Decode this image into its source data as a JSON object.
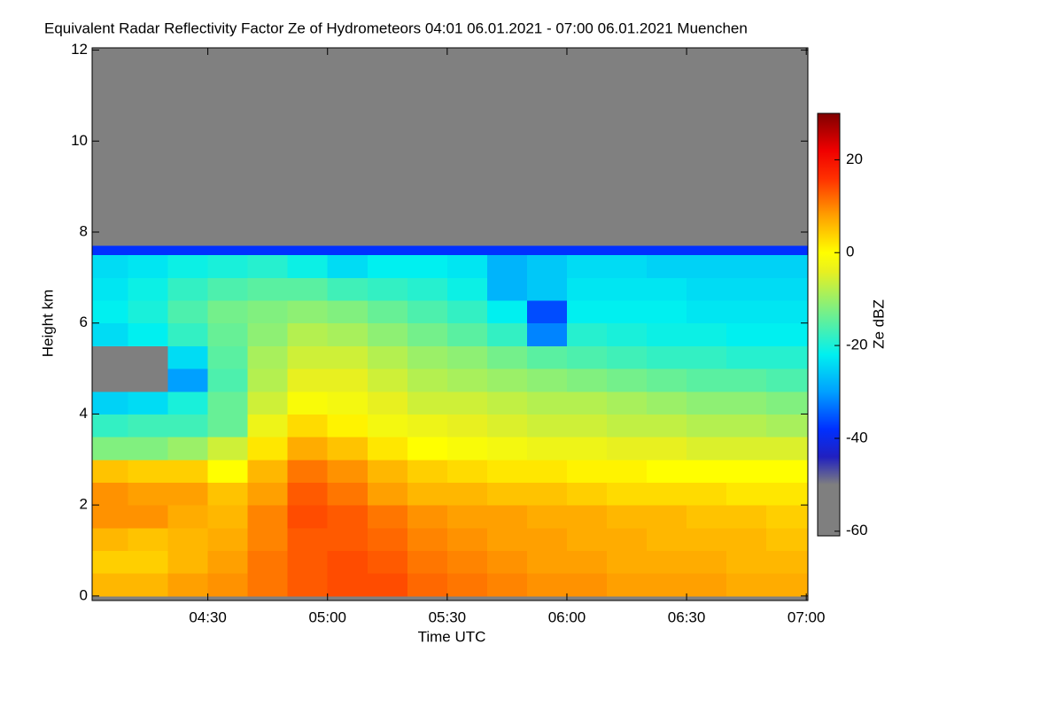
{
  "chart_data": {
    "type": "heatmap",
    "title": "Equivalent Radar Reflectivity Factor Ze of Hydrometeors   04:01 06.01.2021 - 07:00 06.01.2021 Muenchen",
    "x_label": "Time UTC",
    "y_label": "Height km",
    "colorbar_label": "Ze dBZ",
    "xlim": [
      241,
      420.4
    ],
    "xticks": [
      {
        "value": 270,
        "label": "04:30"
      },
      {
        "value": 300,
        "label": "05:00"
      },
      {
        "value": 330,
        "label": "05:30"
      },
      {
        "value": 360,
        "label": "06:00"
      },
      {
        "value": 390,
        "label": "06:30"
      },
      {
        "value": 420,
        "label": "07:00"
      }
    ],
    "ylim": [
      -0.1,
      12.05
    ],
    "yticks": [
      0,
      2,
      4,
      6,
      8,
      10,
      12
    ],
    "zlim": [
      -61,
      30
    ],
    "zticks": [
      -60,
      -40,
      -20,
      0,
      20
    ],
    "background_color": "#808080",
    "xbins": [
      241,
      250,
      260,
      270,
      280,
      290,
      300,
      310,
      320,
      330,
      340,
      350,
      360,
      370,
      380,
      390,
      400,
      410,
      420.4
    ],
    "ybins": [
      0,
      0.5,
      1,
      1.5,
      2,
      2.5,
      3,
      3.5,
      4,
      4.5,
      5,
      5.5,
      6,
      6.5,
      7,
      7.5,
      7.7
    ],
    "z": [
      [
        6,
        6,
        8,
        9,
        11,
        13,
        14,
        14,
        12,
        11,
        10,
        9,
        9,
        8,
        8,
        8,
        7,
        7
      ],
      [
        4,
        4,
        6,
        8,
        11,
        13,
        14,
        13,
        11,
        10,
        9,
        8,
        8,
        7,
        7,
        7,
        6,
        6
      ],
      [
        6,
        5,
        6,
        7,
        10,
        13,
        13,
        12,
        10,
        9,
        8,
        8,
        7,
        7,
        6,
        6,
        6,
        5
      ],
      [
        9,
        9,
        7,
        6,
        10,
        14,
        13,
        11,
        9,
        8,
        8,
        7,
        7,
        6,
        6,
        5,
        5,
        4
      ],
      [
        9,
        8,
        8,
        5,
        8,
        13,
        11,
        8,
        6,
        6,
        5,
        5,
        4,
        3,
        3,
        3,
        2,
        2
      ],
      [
        5,
        4,
        4,
        0,
        6,
        11,
        9,
        6,
        4,
        3,
        2,
        2,
        1,
        1,
        0,
        0,
        0,
        0
      ],
      [
        -12,
        -12,
        -10,
        -6,
        2,
        7,
        5,
        2,
        0,
        -1,
        -2,
        -3,
        -3,
        -4,
        -4,
        -5,
        -5,
        -5
      ],
      [
        -18,
        -17,
        -17,
        -14,
        -3,
        3,
        1,
        -2,
        -3,
        -4,
        -5,
        -6,
        -6,
        -7,
        -7,
        -8,
        -8,
        -9
      ],
      [
        -25,
        -24,
        -20,
        -14,
        -6,
        -1,
        -2,
        -4,
        -6,
        -6,
        -7,
        -8,
        -8,
        -9,
        -10,
        -11,
        -11,
        -12
      ],
      [
        -55,
        -50,
        -30,
        -16,
        -8,
        -4,
        -4,
        -6,
        -8,
        -9,
        -10,
        -11,
        -12,
        -13,
        -14,
        -15,
        -15,
        -16
      ],
      [
        -58,
        -50,
        -24,
        -15,
        -9,
        -6,
        -6,
        -8,
        -10,
        -11,
        -13,
        -15,
        -16,
        -17,
        -18,
        -18,
        -19,
        -19
      ],
      [
        -24,
        -22,
        -18,
        -14,
        -11,
        -8,
        -9,
        -11,
        -13,
        -15,
        -18,
        -32,
        -19,
        -20,
        -21,
        -21,
        -22,
        -22
      ],
      [
        -22,
        -20,
        -16,
        -13,
        -12,
        -11,
        -12,
        -14,
        -16,
        -18,
        -22,
        -36,
        -22,
        -22,
        -22,
        -23,
        -23,
        -23
      ],
      [
        -23,
        -21,
        -18,
        -16,
        -15,
        -15,
        -17,
        -18,
        -19,
        -21,
        -28,
        -26,
        -23,
        -23,
        -23,
        -24,
        -24,
        -24
      ],
      [
        -24,
        -23,
        -21,
        -20,
        -19,
        -21,
        -24,
        -22,
        -22,
        -23,
        -28,
        -26,
        -24,
        -24,
        -25,
        -25,
        -25,
        -25
      ],
      [
        -38,
        -38,
        -38,
        -38,
        -38,
        -38,
        -38,
        -38,
        -38,
        -38,
        -38,
        -38,
        -38,
        -38,
        -38,
        -38,
        -38,
        -38
      ]
    ]
  }
}
